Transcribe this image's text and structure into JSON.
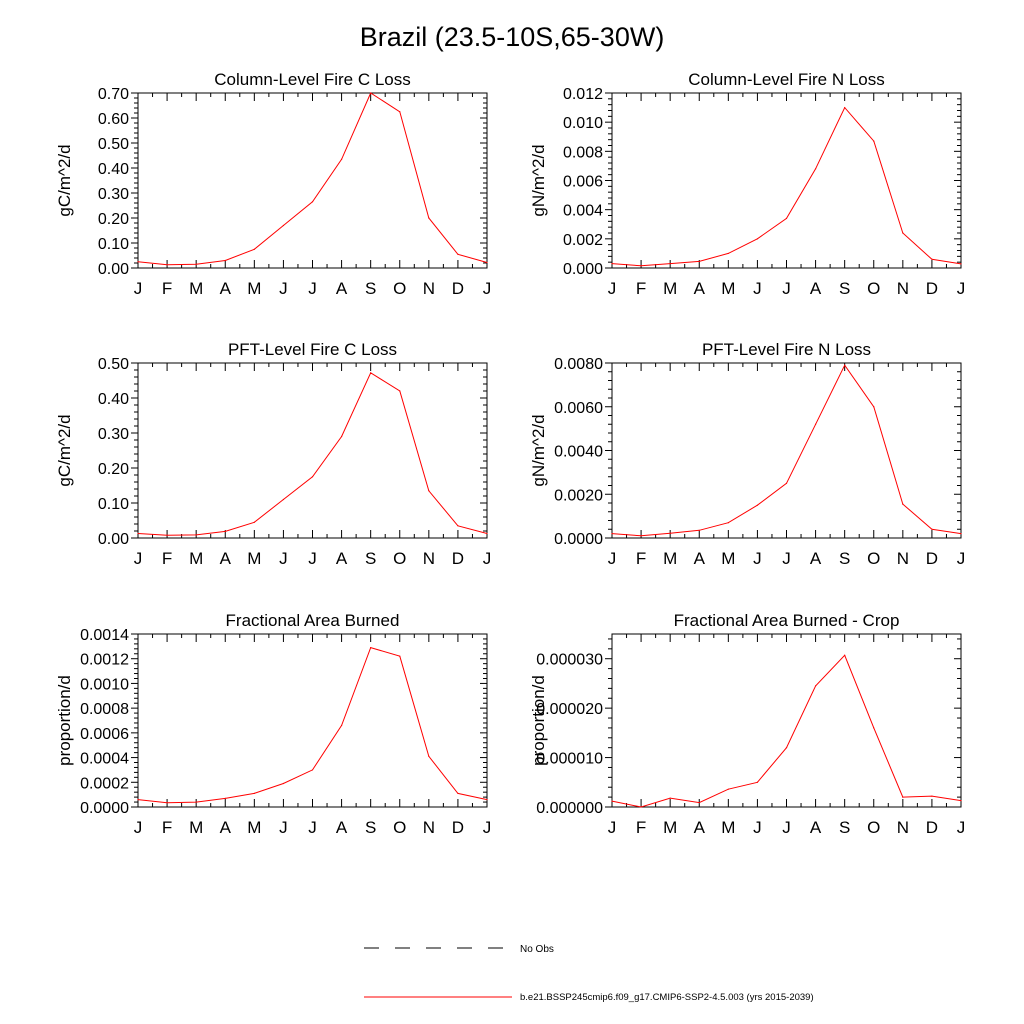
{
  "figure": {
    "title": "Brazil (23.5-10S,65-30W)",
    "legend": [
      {
        "label": "No Obs",
        "color": "#000000",
        "style": "dashed"
      },
      {
        "label": "b.e21.BSSP245cmip6.f09_g17.CMIP6-SSP2-4.5.003 (yrs 2015-2039)",
        "color": "#ff0000",
        "style": "solid"
      }
    ]
  },
  "chart_data": [
    {
      "type": "line",
      "title": "Column-Level Fire C Loss",
      "ylabel": "gC/m^2/d",
      "xlabel": "",
      "categories": [
        "J",
        "F",
        "M",
        "A",
        "M",
        "J",
        "J",
        "A",
        "S",
        "O",
        "N",
        "D",
        "J"
      ],
      "ylim": [
        0,
        0.7
      ],
      "yticks": [
        "0.00",
        "0.10",
        "0.20",
        "0.30",
        "0.40",
        "0.50",
        "0.60",
        "0.70"
      ],
      "ytick_values": [
        0,
        0.1,
        0.2,
        0.3,
        0.4,
        0.5,
        0.6,
        0.7
      ],
      "series": [
        {
          "name": "b.e21.BSSP245cmip6.f09_g17.CMIP6-SSP2-4.5.003 (yrs 2015-2039)",
          "color": "#ff0000",
          "values": [
            0.025,
            0.013,
            0.015,
            0.03,
            0.075,
            0.17,
            0.265,
            0.435,
            0.7,
            0.625,
            0.2,
            0.055,
            0.022
          ]
        }
      ]
    },
    {
      "type": "line",
      "title": "Column-Level Fire N Loss",
      "ylabel": "gN/m^2/d",
      "xlabel": "",
      "categories": [
        "J",
        "F",
        "M",
        "A",
        "M",
        "J",
        "J",
        "A",
        "S",
        "O",
        "N",
        "D",
        "J"
      ],
      "ylim": [
        0,
        0.012
      ],
      "yticks": [
        "0.000",
        "0.002",
        "0.004",
        "0.006",
        "0.008",
        "0.010",
        "0.012"
      ],
      "ytick_values": [
        0,
        0.002,
        0.004,
        0.006,
        0.008,
        0.01,
        0.012
      ],
      "series": [
        {
          "name": "b.e21.BSSP245cmip6.f09_g17.CMIP6-SSP2-4.5.003 (yrs 2015-2039)",
          "color": "#ff0000",
          "values": [
            0.0003,
            0.00015,
            0.0003,
            0.00045,
            0.001,
            0.002,
            0.0034,
            0.0068,
            0.011,
            0.0087,
            0.0024,
            0.0006,
            0.00028
          ]
        }
      ]
    },
    {
      "type": "line",
      "title": "PFT-Level Fire C Loss",
      "ylabel": "gC/m^2/d",
      "xlabel": "",
      "categories": [
        "J",
        "F",
        "M",
        "A",
        "M",
        "J",
        "J",
        "A",
        "S",
        "O",
        "N",
        "D",
        "J"
      ],
      "ylim": [
        0,
        0.5
      ],
      "yticks": [
        "0.00",
        "0.10",
        "0.20",
        "0.30",
        "0.40",
        "0.50"
      ],
      "ytick_values": [
        0,
        0.1,
        0.2,
        0.3,
        0.4,
        0.5
      ],
      "series": [
        {
          "name": "b.e21.BSSP245cmip6.f09_g17.CMIP6-SSP2-4.5.003 (yrs 2015-2039)",
          "color": "#ff0000",
          "values": [
            0.013,
            0.008,
            0.009,
            0.019,
            0.045,
            0.11,
            0.175,
            0.29,
            0.472,
            0.42,
            0.135,
            0.035,
            0.013
          ]
        }
      ]
    },
    {
      "type": "line",
      "title": "PFT-Level Fire N Loss",
      "ylabel": "gN/m^2/d",
      "xlabel": "",
      "categories": [
        "J",
        "F",
        "M",
        "A",
        "M",
        "J",
        "J",
        "A",
        "S",
        "O",
        "N",
        "D",
        "J"
      ],
      "ylim": [
        0,
        0.008
      ],
      "yticks": [
        "0.0000",
        "0.0020",
        "0.0040",
        "0.0060",
        "0.0080"
      ],
      "ytick_values": [
        0,
        0.002,
        0.004,
        0.006,
        0.008
      ],
      "series": [
        {
          "name": "b.e21.BSSP245cmip6.f09_g17.CMIP6-SSP2-4.5.003 (yrs 2015-2039)",
          "color": "#ff0000",
          "values": [
            0.0002,
            0.0001,
            0.00022,
            0.00035,
            0.0007,
            0.0015,
            0.0025,
            0.0052,
            0.0079,
            0.006,
            0.00155,
            0.0004,
            0.0002
          ]
        }
      ]
    },
    {
      "type": "line",
      "title": "Fractional Area Burned",
      "ylabel": "proportion/d",
      "xlabel": "",
      "categories": [
        "J",
        "F",
        "M",
        "A",
        "M",
        "J",
        "J",
        "A",
        "S",
        "O",
        "N",
        "D",
        "J"
      ],
      "ylim": [
        0,
        0.0014
      ],
      "yticks": [
        "0.0000",
        "0.0002",
        "0.0004",
        "0.0006",
        "0.0008",
        "0.0010",
        "0.0012",
        "0.0014"
      ],
      "ytick_values": [
        0,
        0.0002,
        0.0004,
        0.0006,
        0.0008,
        0.001,
        0.0012,
        0.0014
      ],
      "series": [
        {
          "name": "b.e21.BSSP245cmip6.f09_g17.CMIP6-SSP2-4.5.003 (yrs 2015-2039)",
          "color": "#ff0000",
          "values": [
            6e-05,
            3.5e-05,
            4e-05,
            7e-05,
            0.00011,
            0.00019,
            0.0003,
            0.00066,
            0.00129,
            0.00122,
            0.00041,
            0.00011,
            6e-05
          ]
        }
      ]
    },
    {
      "type": "line",
      "title": "Fractional Area Burned - Crop",
      "ylabel": "proportion/d",
      "xlabel": "",
      "categories": [
        "J",
        "F",
        "M",
        "A",
        "M",
        "J",
        "J",
        "A",
        "S",
        "O",
        "N",
        "D",
        "J"
      ],
      "ylim": [
        0,
        3.5e-05
      ],
      "yticks": [
        "0.000000",
        "0.000010",
        "0.000020",
        "0.000030"
      ],
      "ytick_values": [
        0,
        1e-05,
        2e-05,
        3e-05
      ],
      "series": [
        {
          "name": "b.e21.BSSP245cmip6.f09_g17.CMIP6-SSP2-4.5.003 (yrs 2015-2039)",
          "color": "#ff0000",
          "values": [
            1.2e-06,
            0.0,
            1.8e-06,
            9e-07,
            3.6e-06,
            5e-06,
            1.2e-05,
            2.45e-05,
            3.07e-05,
            1.6e-05,
            2e-06,
            2.2e-06,
            1.3e-06
          ]
        }
      ]
    }
  ]
}
